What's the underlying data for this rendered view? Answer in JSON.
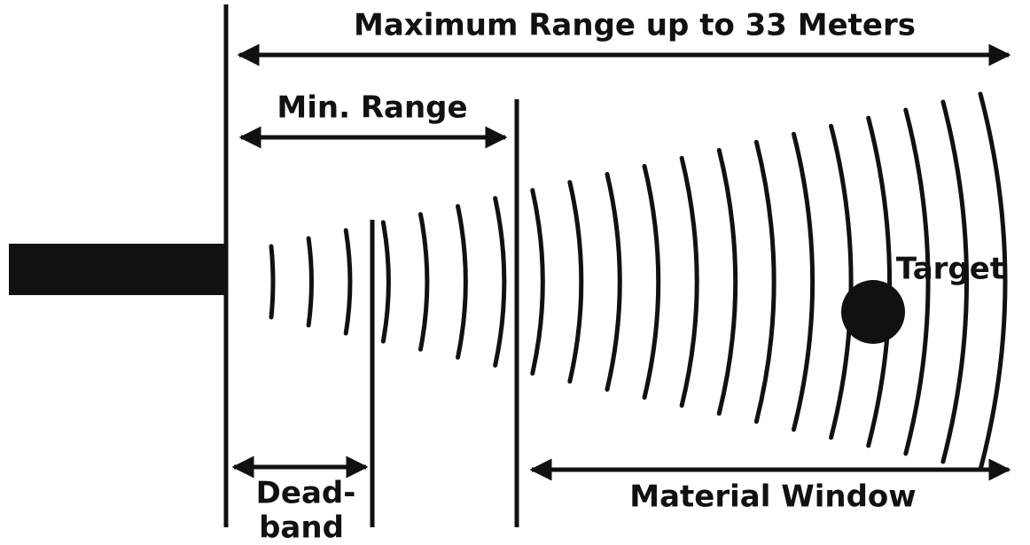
{
  "labels": {
    "max_range": "Maximum Range up to 33 Meters",
    "min_range": "Min. Range",
    "deadband": [
      "Dead-",
      "band"
    ],
    "material_window": "Material Window",
    "target": "Target"
  }
}
